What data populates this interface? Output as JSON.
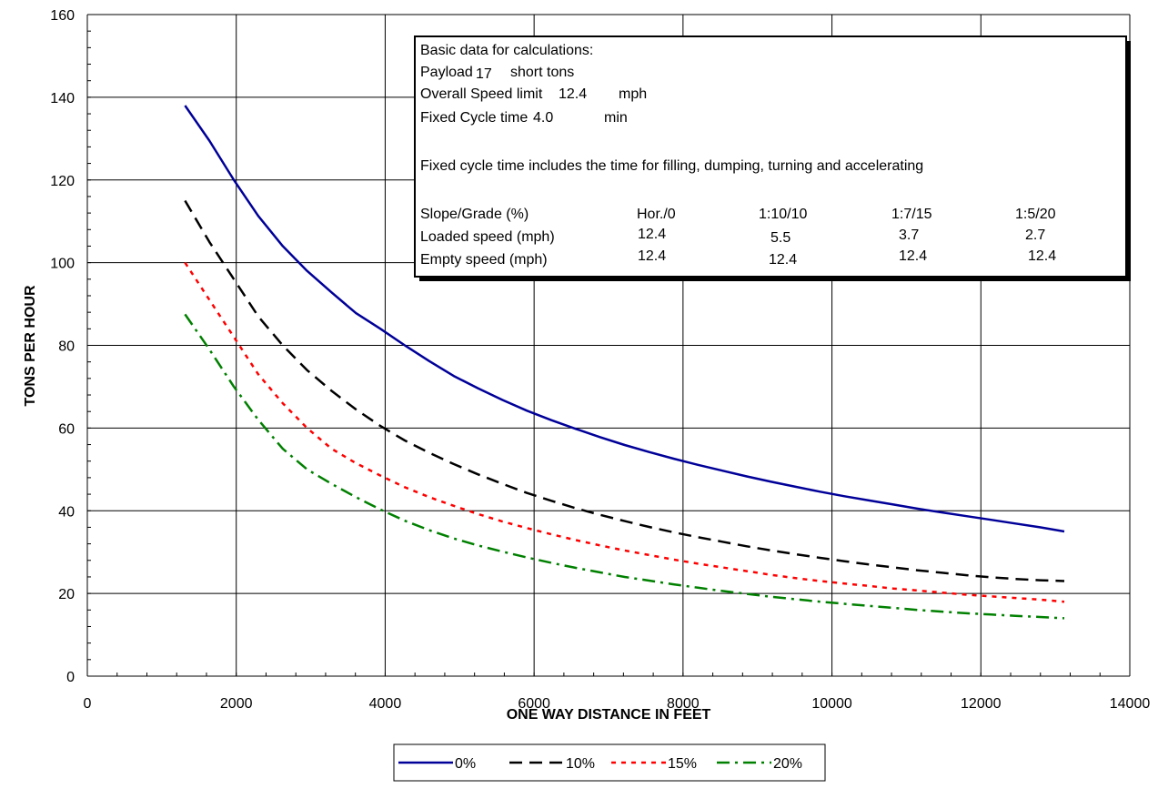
{
  "chart_data": {
    "type": "line",
    "title": "",
    "xlabel": "ONE WAY DISTANCE IN FEET",
    "ylabel": "TONS PER HOUR",
    "xlim": [
      0,
      14000
    ],
    "ylim": [
      0,
      160
    ],
    "xticks": [
      "0",
      "2000",
      "4000",
      "6000",
      "8000",
      "10000",
      "12000",
      "14000"
    ],
    "yticks": [
      "0",
      "20",
      "40",
      "60",
      "80",
      "100",
      "120",
      "140",
      "160"
    ],
    "grid": true,
    "legend_position": "bottom",
    "series": [
      {
        "name": "0%",
        "color": "#000099",
        "dash": "solid",
        "x": [
          1312,
          1640,
          1968,
          2296,
          2624,
          2952,
          3280,
          3608,
          3936,
          4264,
          4592,
          4920,
          5248,
          5576,
          5904,
          6232,
          6560,
          6888,
          7216,
          7544,
          7872,
          8200,
          8528,
          8856,
          9184,
          9512,
          9840,
          10168,
          10496,
          10824,
          11152,
          11480,
          11808,
          12136,
          12464,
          12792,
          13120
        ],
        "y": [
          138,
          129.5,
          120,
          111.3,
          104,
          98,
          92.8,
          87.8,
          84,
          80,
          76.2,
          72.6,
          69.6,
          66.8,
          64.2,
          61.9,
          59.8,
          57.8,
          55.9,
          54.2,
          52.6,
          51.1,
          49.7,
          48.3,
          47,
          45.8,
          44.6,
          43.5,
          42.5,
          41.5,
          40.5,
          39.6,
          38.7,
          37.8,
          36.9,
          36,
          35
        ]
      },
      {
        "name": "10%",
        "color": "#000000",
        "dash": "long-dash",
        "x": [
          1312,
          1640,
          1968,
          2296,
          2624,
          2952,
          3280,
          3608,
          3936,
          4264,
          4592,
          4920,
          5248,
          5576,
          5904,
          6232,
          6560,
          6888,
          7216,
          7544,
          7872,
          8200,
          8528,
          8856,
          9184,
          9512,
          9840,
          10168,
          10496,
          10824,
          11152,
          11480,
          11808,
          12136,
          12464,
          12792,
          13120
        ],
        "y": [
          115,
          105,
          96,
          87,
          80,
          74,
          69,
          64.5,
          60.5,
          57,
          54,
          51.3,
          48.8,
          46.5,
          44.3,
          42.4,
          40.6,
          39,
          37.5,
          36.1,
          34.8,
          33.6,
          32.5,
          31.4,
          30.4,
          29.5,
          28.6,
          27.8,
          27,
          26.3,
          25.6,
          25,
          24.4,
          23.9,
          23.5,
          23.2,
          23
        ]
      },
      {
        "name": "15%",
        "color": "#ff0000",
        "dash": "dotted",
        "x": [
          1312,
          1640,
          1968,
          2296,
          2624,
          2952,
          3280,
          3608,
          3936,
          4264,
          4592,
          4920,
          5248,
          5576,
          5904,
          6232,
          6560,
          6888,
          7216,
          7544,
          7872,
          8200,
          8528,
          8856,
          9184,
          9512,
          9840,
          10168,
          10496,
          10824,
          11152,
          11480,
          11808,
          12136,
          12464,
          12792,
          13120
        ],
        "y": [
          100,
          91,
          82,
          73,
          66,
          60,
          55,
          51.5,
          48.5,
          45.7,
          43.3,
          41.2,
          39.2,
          37.4,
          35.8,
          34.3,
          32.9,
          31.6,
          30.4,
          29.3,
          28.2,
          27.2,
          26.3,
          25.4,
          24.5,
          23.7,
          23,
          22.4,
          21.8,
          21.2,
          20.7,
          20.2,
          19.7,
          19.3,
          18.9,
          18.5,
          18
        ]
      },
      {
        "name": "20%",
        "color": "#008000",
        "dash": "dash-dot",
        "x": [
          1312,
          1640,
          1968,
          2296,
          2624,
          2952,
          3280,
          3608,
          3936,
          4264,
          4592,
          4920,
          5248,
          5576,
          5904,
          6232,
          6560,
          6888,
          7216,
          7544,
          7872,
          8200,
          8528,
          8856,
          9184,
          9512,
          9840,
          10168,
          10496,
          10824,
          11152,
          11480,
          11808,
          12136,
          12464,
          12792,
          13120
        ],
        "y": [
          87.5,
          79,
          70,
          62,
          55,
          50,
          46.5,
          43.3,
          40.3,
          37.6,
          35.3,
          33.3,
          31.6,
          30.1,
          28.7,
          27.4,
          26.2,
          25.1,
          24,
          23.1,
          22.2,
          21.4,
          20.6,
          19.9,
          19.2,
          18.6,
          18,
          17.5,
          17,
          16.5,
          16,
          15.6,
          15.2,
          14.9,
          14.6,
          14.3,
          14
        ]
      }
    ]
  },
  "infobox": {
    "line1": "Basic data for calculations:",
    "payload_label": "Payload",
    "payload_value": "17",
    "payload_unit": "short tons",
    "speed_label": "Overall Speed limit",
    "speed_value": "12.4",
    "speed_unit": "mph",
    "cycle_label": "Fixed Cycle time",
    "cycle_value": "4.0",
    "cycle_unit": "min",
    "note": "Fixed cycle time includes the time for filling, dumping, turning and accelerating",
    "table_headers": [
      "Slope/Grade (%)",
      "Hor./0",
      "1:10/10",
      "1:7/15",
      "1:5/20"
    ],
    "loaded_row": [
      "Loaded speed (mph)",
      "12.4",
      "5.5",
      "3.7",
      "2.7"
    ],
    "empty_row": [
      "Empty speed (mph)",
      "12.4",
      "12.4",
      "12.4",
      "12.4"
    ]
  }
}
